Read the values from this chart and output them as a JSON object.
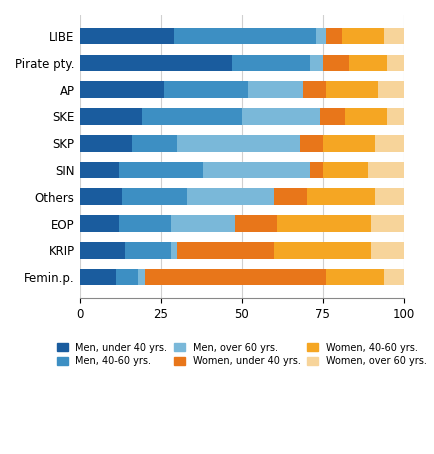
{
  "parties": [
    "LIBE",
    "Pirate pty.",
    "AP",
    "SKE",
    "SKP",
    "SIN",
    "Others",
    "EOP",
    "KRIP",
    "Femin.p."
  ],
  "segments": {
    "men_u40": [
      29,
      47,
      26,
      19,
      16,
      12,
      13,
      12,
      14,
      11
    ],
    "men_4060": [
      44,
      24,
      26,
      31,
      14,
      26,
      20,
      16,
      14,
      7
    ],
    "men_o60": [
      3,
      4,
      17,
      24,
      38,
      33,
      27,
      20,
      2,
      2
    ],
    "women_u40": [
      5,
      8,
      7,
      8,
      7,
      4,
      10,
      13,
      30,
      56
    ],
    "women_4060": [
      13,
      12,
      16,
      13,
      16,
      14,
      21,
      29,
      30,
      18
    ],
    "women_o60": [
      6,
      5,
      8,
      5,
      9,
      11,
      9,
      10,
      10,
      6
    ]
  },
  "colors": {
    "men_u40": "#1a5c9e",
    "men_4060": "#3d8fc3",
    "men_o60": "#7ab8d9",
    "women_u40": "#e8761a",
    "women_4060": "#f5a623",
    "women_o60": "#f7d49a"
  },
  "legend_labels": [
    "Men, under 40 yrs.",
    "Men, 40-60 yrs.",
    "Men, over 60 yrs.",
    "Women, under 40 yrs.",
    "Women, 40-60 yrs.",
    "Women, over 60 yrs."
  ],
  "xlim": [
    0,
    100
  ],
  "xticks": [
    0,
    25,
    50,
    75,
    100
  ],
  "bar_height": 0.62,
  "background_color": "#ffffff",
  "grid_color": "#d0d0d0"
}
